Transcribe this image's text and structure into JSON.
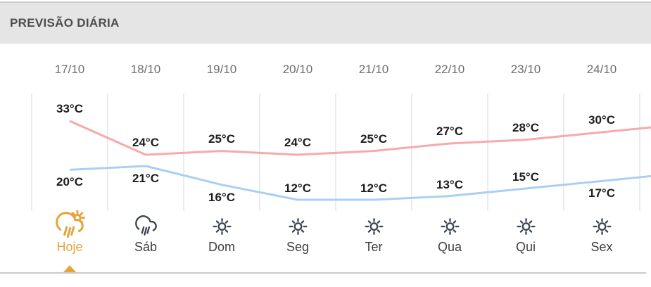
{
  "header": {
    "title": "PREVISÃO DIÁRIA"
  },
  "chart_data": {
    "type": "line",
    "categories": [
      "17/10",
      "18/10",
      "19/10",
      "20/10",
      "21/10",
      "22/10",
      "23/10",
      "24/10"
    ],
    "series": [
      {
        "name": "temperatura-maxima",
        "color": "#f6aaab",
        "values": [
          33,
          24,
          25,
          24,
          25,
          27,
          28,
          30
        ]
      },
      {
        "name": "temperatura-minima",
        "color": "#abcff4",
        "values": [
          20,
          21,
          16,
          12,
          12,
          13,
          15,
          17
        ]
      }
    ],
    "unit": "°C",
    "ylim": [
      9,
      40
    ],
    "grid": true,
    "legend": false,
    "low_label_below": [
      true,
      true,
      true,
      false,
      false,
      false,
      false,
      true
    ],
    "days": [
      {
        "label": "Hoje",
        "icon": "rain-sun-icon",
        "selected": true
      },
      {
        "label": "Sáb",
        "icon": "rain-cloud-icon",
        "selected": false
      },
      {
        "label": "Dom",
        "icon": "sun-icon",
        "selected": false
      },
      {
        "label": "Seg",
        "icon": "sun-icon",
        "selected": false
      },
      {
        "label": "Ter",
        "icon": "sun-icon",
        "selected": false
      },
      {
        "label": "Qua",
        "icon": "sun-icon",
        "selected": false
      },
      {
        "label": "Qui",
        "icon": "sun-icon",
        "selected": false
      },
      {
        "label": "Sex",
        "icon": "sun-icon",
        "selected": false
      }
    ]
  },
  "colors": {
    "accent_orange": "#e7a33c",
    "icon_dark": "#3b4350",
    "grid_line": "#dadada",
    "header_bg": "#e5e5e5",
    "divider": "#cbcbcb"
  }
}
